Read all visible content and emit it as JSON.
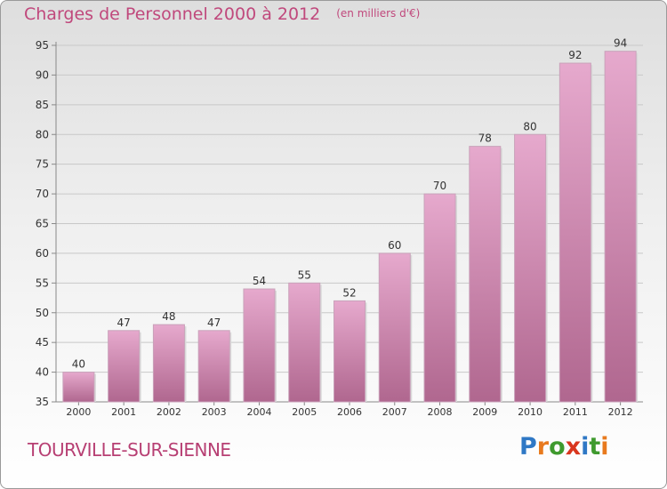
{
  "title": {
    "text": "Charges de Personnel 2000 à 2012",
    "unit": "(en milliers d'€)"
  },
  "commune": "TOURVILLE-SUR-SIENNE",
  "logo": {
    "letters": [
      "P",
      "r",
      "o",
      "x",
      "i",
      "t",
      "i"
    ],
    "colors": [
      "#2f78c5",
      "#e87a1e",
      "#3f9a2e",
      "#d9361e",
      "#2f78c5",
      "#3f9a2e",
      "#e87a1e"
    ]
  },
  "colors": {
    "bar_top": "#e6a9cd",
    "bar_bottom": "#b0678f",
    "title": "#c0487c"
  },
  "chart_data": {
    "type": "bar",
    "categories": [
      "2000",
      "2001",
      "2002",
      "2003",
      "2004",
      "2005",
      "2006",
      "2007",
      "2008",
      "2009",
      "2010",
      "2011",
      "2012"
    ],
    "values": [
      40,
      47,
      48,
      47,
      54,
      55,
      52,
      60,
      70,
      78,
      80,
      92,
      94
    ],
    "ylim": [
      35,
      95
    ],
    "yticks": [
      35,
      40,
      45,
      50,
      55,
      60,
      65,
      70,
      75,
      80,
      85,
      90,
      95
    ],
    "grid": true,
    "legend": "none"
  }
}
